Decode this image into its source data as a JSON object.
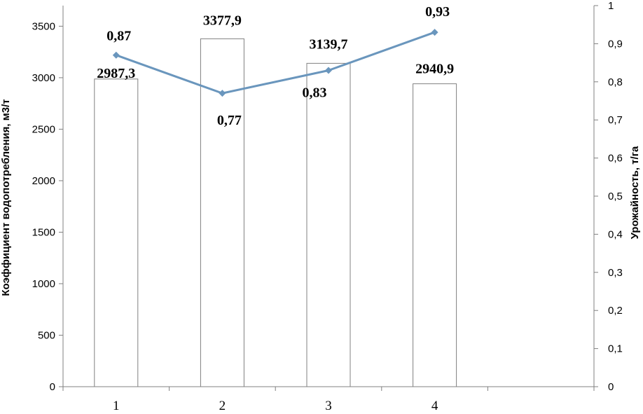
{
  "chart_data": {
    "type": "bar+line",
    "categories": [
      "1",
      "2",
      "3",
      "4"
    ],
    "x_slots": 5,
    "bars": {
      "values": [
        2987.3,
        3377.9,
        3139.7,
        2940.9
      ],
      "labels": [
        "2987,3",
        "3377,9",
        "3139,7",
        "2940,9"
      ],
      "fill": "#ffffff",
      "stroke": "#808080"
    },
    "line": {
      "values": [
        0.87,
        0.77,
        0.83,
        0.93
      ],
      "labels": [
        "0,87",
        "0,77",
        "0,83",
        "0,93"
      ],
      "color": "#6a96bd",
      "marker": "diamond",
      "axis": "right"
    },
    "left_axis": {
      "label": "Коэффициент водопотребления, м3/т",
      "ylim": [
        0,
        3700
      ],
      "ticks": [
        0,
        500,
        1000,
        1500,
        2000,
        2500,
        3000,
        3500
      ],
      "tick_labels": [
        "0",
        "500",
        "1000",
        "1500",
        "2000",
        "2500",
        "3000",
        "3500"
      ]
    },
    "right_axis": {
      "label": "Урожайность, т/га",
      "ylim": [
        0,
        1
      ],
      "ticks": [
        0,
        0.1,
        0.2,
        0.3,
        0.4,
        0.5,
        0.6,
        0.7,
        0.8,
        0.9,
        1
      ],
      "tick_labels": [
        "0",
        "0,1",
        "0,2",
        "0,3",
        "0,4",
        "0,5",
        "0,6",
        "0,7",
        "0,8",
        "0,9",
        "1"
      ]
    },
    "grid": false,
    "legend": "none"
  }
}
